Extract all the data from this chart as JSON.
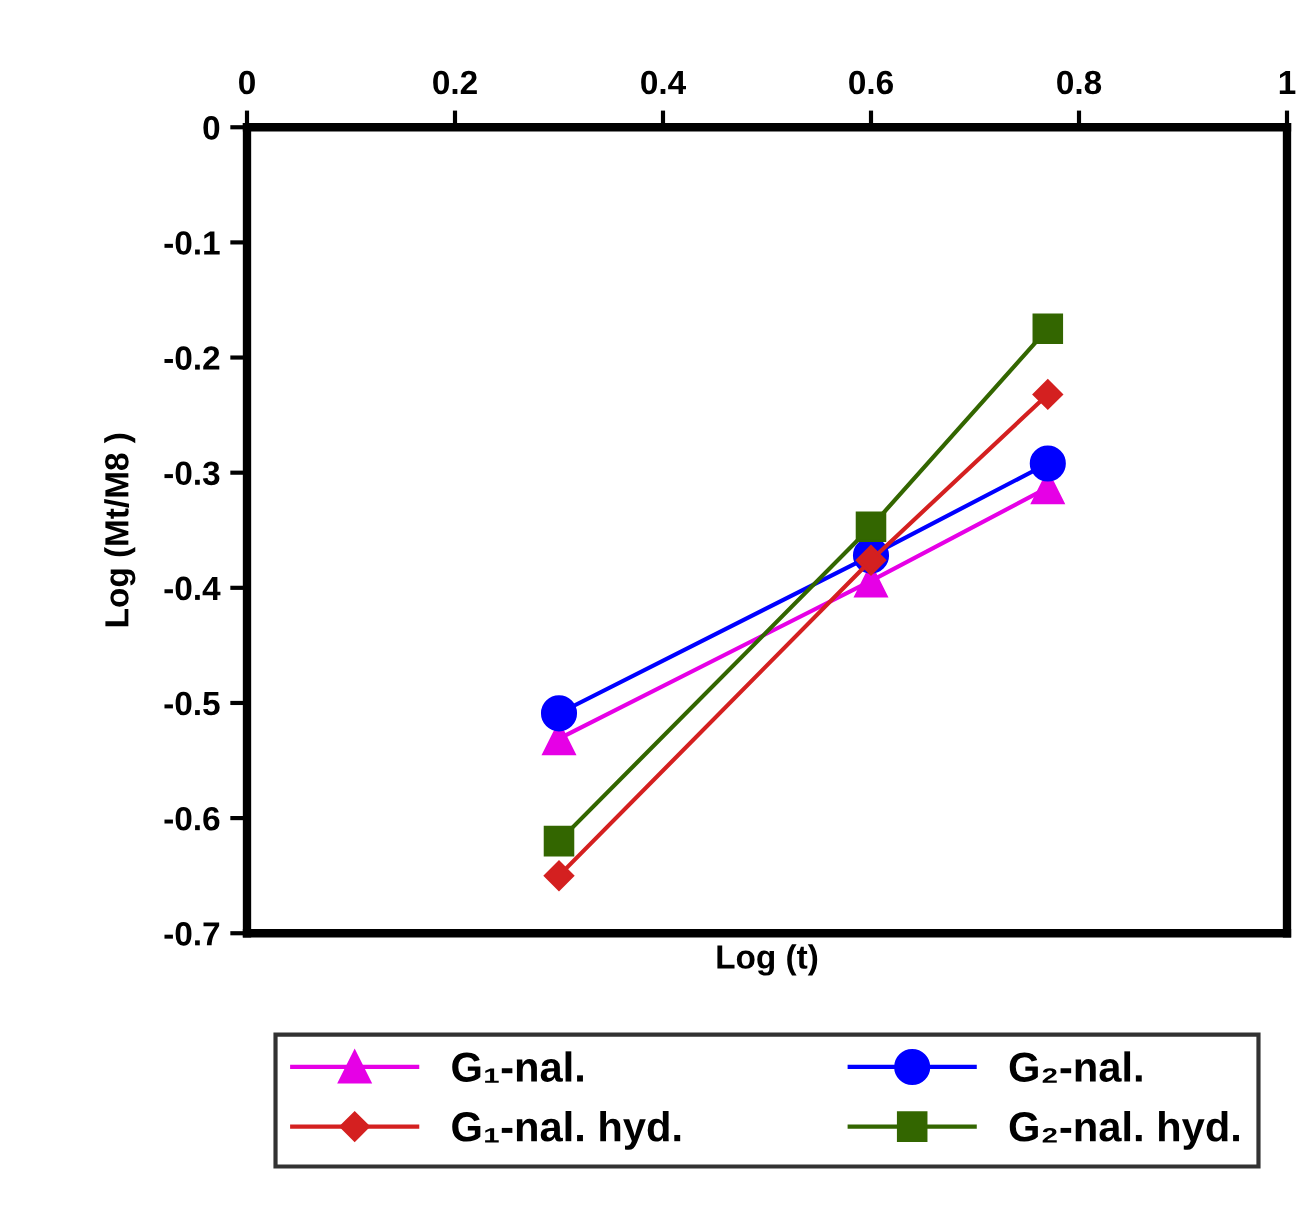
{
  "chart_data": {
    "type": "line",
    "xlabel": "Log (t)",
    "ylabel": "Log (Mt/M8 )",
    "xlim": [
      0,
      1
    ],
    "xticks": [
      0,
      0.2,
      0.4,
      0.6,
      0.8,
      1
    ],
    "ylim": [
      -0.7,
      0
    ],
    "yticks": [
      -0.7,
      -0.6,
      -0.5,
      -0.4,
      -0.3,
      -0.2,
      -0.1,
      0
    ],
    "x": [
      0.3,
      0.6,
      0.77
    ],
    "grid": false,
    "legend": "bottom",
    "series": [
      {
        "name": "G₁-nal.",
        "color": "#e600e6",
        "marker": "triangle",
        "values": [
          -0.531,
          -0.394,
          -0.313
        ]
      },
      {
        "name": "G₂-nal.",
        "color": "#0000ff",
        "marker": "circle",
        "values": [
          -0.509,
          -0.372,
          -0.292
        ]
      },
      {
        "name": "G₁-nal. hyd.",
        "color": "#d42020",
        "marker": "diamond",
        "values": [
          -0.65,
          -0.376,
          -0.232
        ]
      },
      {
        "name": "G₂-nal. hyd.",
        "color": "#336600",
        "marker": "square",
        "values": [
          -0.62,
          -0.347,
          -0.175
        ]
      }
    ]
  }
}
